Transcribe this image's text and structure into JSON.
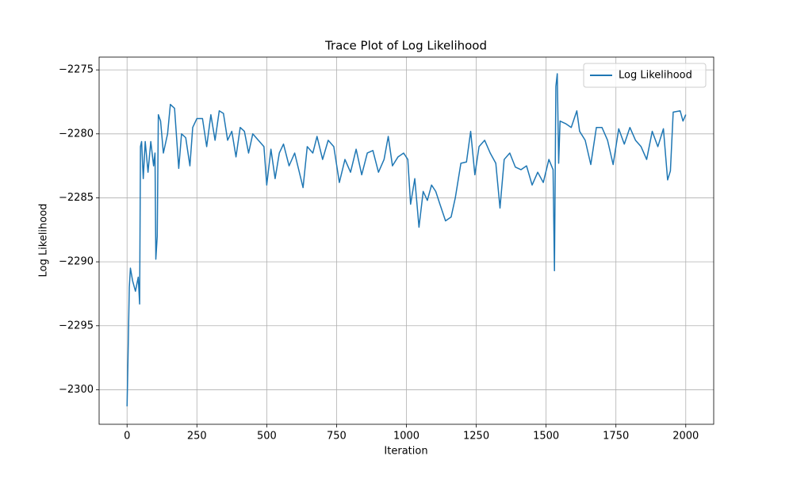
{
  "chart_data": {
    "type": "line",
    "title": "Trace Plot of Log Likelihood",
    "xlabel": "Iteration",
    "ylabel": "Log Likelihood",
    "xlim": [
      -100,
      2100
    ],
    "ylim": [
      -2302.7,
      -2274.0
    ],
    "xticks": [
      0,
      250,
      500,
      750,
      1000,
      1250,
      1500,
      1750,
      2000
    ],
    "yticks": [
      {
        "value": -2300,
        "label": "−2300"
      },
      {
        "value": -2295,
        "label": "−2295"
      },
      {
        "value": -2290,
        "label": "−2290"
      },
      {
        "value": -2285,
        "label": "−2285"
      },
      {
        "value": -2280,
        "label": "−2280"
      },
      {
        "value": -2275,
        "label": "−2275"
      }
    ],
    "grid": true,
    "legend": "upper right",
    "x": [
      0,
      3,
      8,
      12,
      20,
      30,
      40,
      45,
      48,
      52,
      58,
      65,
      75,
      85,
      95,
      100,
      103,
      108,
      112,
      120,
      130,
      145,
      155,
      170,
      185,
      195,
      210,
      225,
      235,
      250,
      270,
      285,
      300,
      315,
      330,
      345,
      360,
      375,
      390,
      405,
      420,
      435,
      450,
      470,
      490,
      500,
      515,
      530,
      545,
      560,
      580,
      600,
      630,
      645,
      665,
      680,
      700,
      720,
      740,
      760,
      780,
      800,
      820,
      840,
      860,
      880,
      900,
      920,
      935,
      950,
      970,
      990,
      1005,
      1015,
      1030,
      1045,
      1060,
      1075,
      1090,
      1105,
      1120,
      1140,
      1160,
      1175,
      1195,
      1215,
      1230,
      1245,
      1260,
      1280,
      1300,
      1320,
      1335,
      1350,
      1370,
      1390,
      1410,
      1430,
      1450,
      1470,
      1490,
      1510,
      1525,
      1530,
      1535,
      1540,
      1545,
      1550,
      1570,
      1590,
      1610,
      1620,
      1640,
      1660,
      1680,
      1700,
      1720,
      1740,
      1760,
      1780,
      1800,
      1820,
      1840,
      1860,
      1880,
      1900,
      1920,
      1935,
      1945,
      1955,
      1980,
      1990,
      2000
    ],
    "series": [
      {
        "name": "Log Likelihood",
        "color": "#1f77b4",
        "values": [
          -2301.3,
          -2298,
          -2292,
          -2290.5,
          -2291.5,
          -2292.3,
          -2291.2,
          -2293.3,
          -2281,
          -2280.6,
          -2283.5,
          -2280.6,
          -2283,
          -2280.6,
          -2282.5,
          -2281.5,
          -2289.8,
          -2288,
          -2278.5,
          -2279,
          -2281.5,
          -2280,
          -2277.7,
          -2278,
          -2282.7,
          -2280,
          -2280.3,
          -2282.5,
          -2279.5,
          -2278.8,
          -2278.8,
          -2281,
          -2278.5,
          -2280.5,
          -2278.2,
          -2278.4,
          -2280.5,
          -2279.8,
          -2281.8,
          -2279.5,
          -2279.8,
          -2281.5,
          -2280,
          -2280.5,
          -2281,
          -2284,
          -2281.2,
          -2283.5,
          -2281.5,
          -2280.8,
          -2282.5,
          -2281.5,
          -2284.2,
          -2281,
          -2281.5,
          -2280.2,
          -2282,
          -2280.5,
          -2281,
          -2283.8,
          -2282,
          -2283,
          -2281.2,
          -2283.2,
          -2281.5,
          -2281.3,
          -2283,
          -2282,
          -2280.2,
          -2282.5,
          -2281.8,
          -2281.5,
          -2282,
          -2285.5,
          -2283.5,
          -2287.3,
          -2284.5,
          -2285.2,
          -2284,
          -2284.5,
          -2285.5,
          -2286.8,
          -2286.5,
          -2285,
          -2282.3,
          -2282.2,
          -2279.8,
          -2283.2,
          -2281,
          -2280.5,
          -2281.5,
          -2282.3,
          -2285.8,
          -2282,
          -2281.5,
          -2282.6,
          -2282.8,
          -2282.5,
          -2284,
          -2283,
          -2283.8,
          -2282,
          -2282.8,
          -2290.7,
          -2276.3,
          -2275.3,
          -2282.3,
          -2279,
          -2279.2,
          -2279.5,
          -2278.2,
          -2279.8,
          -2280.5,
          -2282.4,
          -2279.5,
          -2279.5,
          -2280.5,
          -2282.4,
          -2279.6,
          -2280.8,
          -2279.5,
          -2280.5,
          -2281,
          -2282,
          -2279.8,
          -2281,
          -2279.6,
          -2283.6,
          -2282.9,
          -2278.3,
          -2278.2,
          -2279,
          -2278.5
        ]
      }
    ]
  }
}
